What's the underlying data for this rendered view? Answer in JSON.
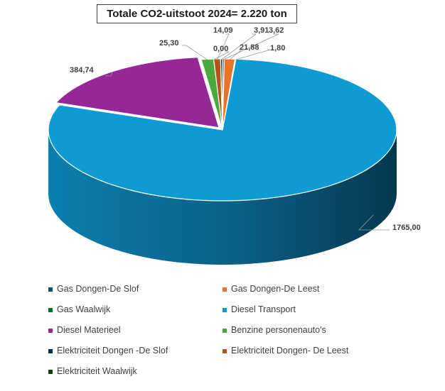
{
  "chart_data": {
    "type": "pie",
    "variant": "3d-exploded",
    "title": "Totale CO2-uitstoot 2024= 2.220 ton",
    "categories": [
      "Gas Dongen-De Slof",
      "Gas Dongen-De Leest",
      "Gas Waalwijk",
      "Diesel Transport",
      "Diesel Materieel",
      "Benzine personenauto's",
      "Elektriciteit Dongen -De Slof",
      "Elektriciteit Dongen- De Leest",
      "Elektriciteit Waalwijk"
    ],
    "values": [
      3.62,
      21.88,
      1.8,
      1765.0,
      384.74,
      25.3,
      0.0,
      14.09,
      3.91
    ],
    "data_labels": [
      "3,62",
      "21,88",
      "1,80",
      "1765,00",
      "384,74",
      "25,30",
      "0,00",
      "14,09",
      "3,91"
    ],
    "colors": [
      "#0e4f6e",
      "#e8742a",
      "#136b2b",
      "#0e9ad3",
      "#952896",
      "#4aa83c",
      "#082c3e",
      "#b6531c",
      "#0b3f18"
    ],
    "legend_position": "bottom"
  }
}
